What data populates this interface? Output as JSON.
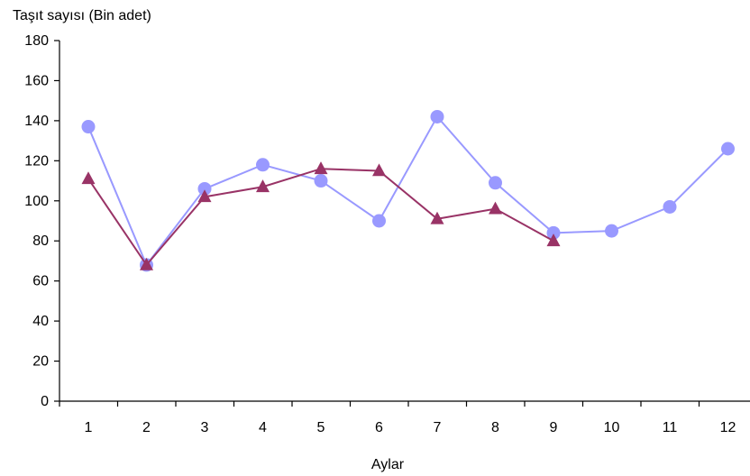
{
  "chart_data": {
    "type": "line",
    "ylabel": "Taşıt sayısı (Bin adet)",
    "xlabel": "Aylar",
    "categories": [
      "1",
      "2",
      "3",
      "4",
      "5",
      "6",
      "7",
      "8",
      "9",
      "10",
      "11",
      "12"
    ],
    "ylim": [
      0,
      180
    ],
    "yticks": [
      0,
      20,
      40,
      60,
      80,
      100,
      120,
      140,
      160,
      180
    ],
    "grid": false,
    "legend": "none",
    "series": [
      {
        "color": "#9999ff",
        "marker": "circle",
        "values": [
          137,
          68,
          106,
          118,
          110,
          90,
          142,
          109,
          84,
          85,
          97,
          126
        ]
      },
      {
        "color": "#993366",
        "marker": "triangle",
        "values": [
          111,
          68,
          102,
          107,
          116,
          115,
          91,
          96,
          80,
          null,
          null,
          null
        ]
      }
    ]
  }
}
